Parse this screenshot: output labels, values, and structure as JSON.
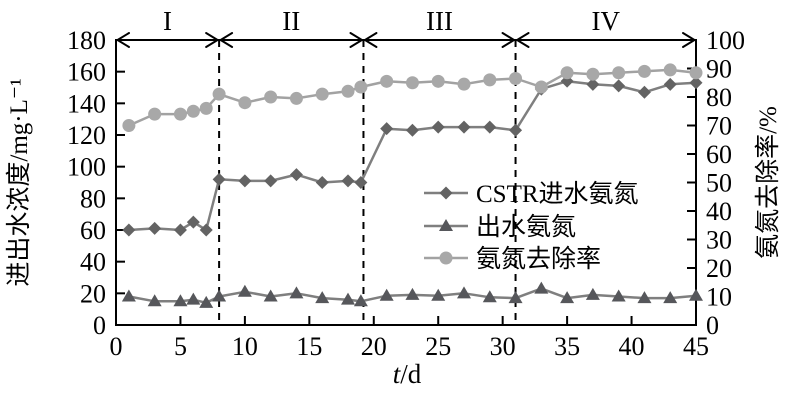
{
  "chart_data": {
    "type": "line",
    "title": "",
    "xlabel": "t/d",
    "xlabel_italic_part": "t",
    "xlabel_rest": "/d",
    "ylabel_left": "进出水浓度/mg·L⁻¹",
    "ylabel_right": "氨氮去除率/%",
    "xlim": [
      0,
      45
    ],
    "xticks": [
      0,
      5,
      10,
      15,
      20,
      25,
      30,
      35,
      40,
      45
    ],
    "ylim_left": [
      0,
      180
    ],
    "yticks_left": [
      0,
      20,
      40,
      60,
      80,
      100,
      120,
      140,
      160,
      180
    ],
    "ylim_right": [
      0,
      100
    ],
    "yticks_right": [
      0,
      10,
      20,
      30,
      40,
      50,
      60,
      70,
      80,
      90,
      100
    ],
    "grid": false,
    "axis_color": "#000000",
    "x": [
      1,
      3,
      5,
      6,
      7,
      8,
      10,
      12,
      14,
      16,
      18,
      19,
      21,
      23,
      25,
      27,
      29,
      31,
      33,
      35,
      37,
      39,
      41,
      43,
      45
    ],
    "series": [
      {
        "name": "CSTR进水氨氮",
        "axis": "left",
        "marker": "diamond",
        "marker_color": "#636363",
        "line_color": "#7f7f7f",
        "values": [
          60,
          61,
          60,
          65,
          60,
          92,
          91,
          91,
          95,
          90,
          91,
          90,
          124,
          123,
          125,
          125,
          125,
          123,
          149,
          154,
          152,
          151,
          147,
          152,
          153
        ]
      },
      {
        "name": "出水氨氮",
        "axis": "left",
        "marker": "triangle",
        "marker_color": "#56575b",
        "line_color": "#7f7f7f",
        "values": [
          18,
          15,
          15,
          16,
          14,
          18,
          21,
          18,
          20,
          17,
          16,
          15,
          18.5,
          19,
          18.5,
          20,
          17.5,
          17,
          23,
          17,
          19,
          18,
          17,
          17,
          18.5
        ]
      },
      {
        "name": "氨氮去除率",
        "axis": "right",
        "marker": "circle",
        "marker_color": "#a8a8a8",
        "line_color": "#a2a2a2",
        "values": [
          70,
          74,
          74,
          75,
          76,
          81,
          78,
          80,
          79.5,
          81,
          82,
          83.5,
          85.5,
          85,
          85.5,
          84.5,
          86,
          86.5,
          83.5,
          88.5,
          88,
          88.5,
          89,
          89.5,
          88.5
        ]
      }
    ],
    "phases": [
      {
        "label": "I",
        "from": 0,
        "to": 8
      },
      {
        "label": "II",
        "from": 8,
        "to": 19.2
      },
      {
        "label": "III",
        "from": 19.2,
        "to": 31
      },
      {
        "label": "IV",
        "from": 31,
        "to": 45
      }
    ],
    "dividers": [
      8,
      19.2,
      31
    ],
    "legend": {
      "position": "inside-middle-right",
      "items": [
        "CSTR进水氨氮",
        "出水氨氮",
        "氨氮去除率"
      ]
    }
  }
}
